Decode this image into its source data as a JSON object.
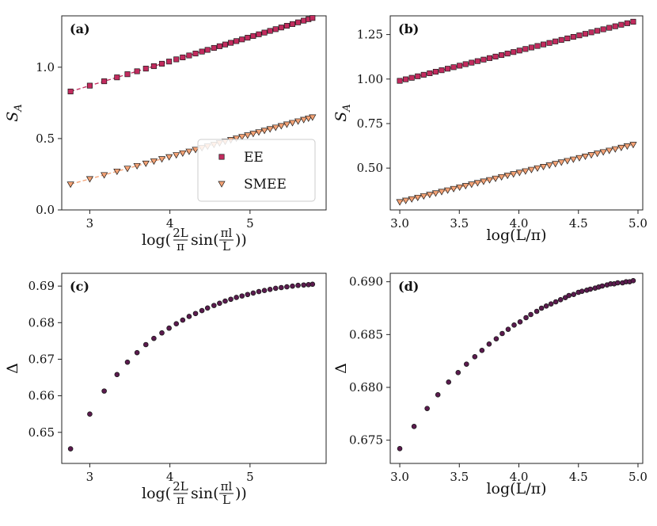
{
  "chart_data": [
    {
      "type": "scatter",
      "panel_label": "(a)",
      "xlabel": "log(2L/π sin(πl/L))",
      "ylabel": "S_A",
      "xlim": [
        2.65,
        5.95
      ],
      "ylim": [
        0.0,
        1.36
      ],
      "xticks": [
        3,
        4,
        5
      ],
      "yticks": [
        0.0,
        0.5,
        1.0
      ],
      "ytick_labels": [
        "0.0",
        "0.5",
        "1.0"
      ],
      "series": [
        {
          "name": "EE",
          "marker": "square",
          "color": "#c22b5e",
          "fit_color": "#c22b5e",
          "x": [
            2.76,
            3.0,
            3.18,
            3.34,
            3.47,
            3.59,
            3.7,
            3.8,
            3.9,
            3.99,
            4.08,
            4.16,
            4.24,
            4.32,
            4.4,
            4.47,
            4.55,
            4.62,
            4.69,
            4.76,
            4.83,
            4.9,
            4.97,
            5.04,
            5.11,
            5.18,
            5.25,
            5.32,
            5.39,
            5.46,
            5.53,
            5.6,
            5.67,
            5.73,
            5.78
          ],
          "fit": {
            "x": [
              2.76,
              5.78
            ],
            "y": [
              0.83,
              1.345
            ]
          }
        },
        {
          "name": "SMEE",
          "marker": "triangle-down",
          "color": "#f4a275",
          "fit_color": "#f4a275",
          "x": [
            2.76,
            3.0,
            3.18,
            3.34,
            3.47,
            3.59,
            3.7,
            3.8,
            3.9,
            3.99,
            4.08,
            4.16,
            4.24,
            4.32,
            4.4,
            4.47,
            4.55,
            4.62,
            4.69,
            4.76,
            4.83,
            4.9,
            4.97,
            5.04,
            5.11,
            5.18,
            5.25,
            5.32,
            5.39,
            5.46,
            5.53,
            5.6,
            5.67,
            5.73,
            5.78
          ],
          "fit": {
            "x": [
              2.76,
              5.78
            ],
            "y": [
              0.18,
              0.65
            ]
          }
        }
      ],
      "legend": {
        "placement": "lower-right",
        "entries": [
          "EE",
          "SMEE"
        ]
      }
    },
    {
      "type": "scatter",
      "panel_label": "(b)",
      "xlabel": "log(L/π)",
      "ylabel": "S_A",
      "xlim": [
        2.92,
        5.04
      ],
      "ylim": [
        0.265,
        1.355
      ],
      "xticks": [
        3.0,
        3.5,
        4.0,
        4.5,
        5.0
      ],
      "xtick_labels": [
        "3.0",
        "3.5",
        "4.0",
        "4.5",
        "5.0"
      ],
      "yticks": [
        0.5,
        0.75,
        1.0,
        1.25
      ],
      "ytick_labels": [
        "0.50",
        "0.75",
        "1.00",
        "1.25"
      ],
      "series": [
        {
          "name": "EE",
          "marker": "square",
          "color": "#c22b5e",
          "x_start": 3.0,
          "x_end": 4.96,
          "count": 40,
          "fit": {
            "x": [
              3.0,
              4.96
            ],
            "y": [
              0.99,
              1.322
            ]
          }
        },
        {
          "name": "SMEE",
          "marker": "triangle-down",
          "color": "#f4a275",
          "x_start": 3.0,
          "x_end": 4.96,
          "count": 40,
          "fit": {
            "x": [
              3.0,
              4.96
            ],
            "y": [
              0.31,
              0.632
            ]
          }
        }
      ]
    },
    {
      "type": "scatter",
      "panel_label": "(c)",
      "xlabel": "log(2L/π sin(πl/L))",
      "ylabel": "Δ",
      "xlim": [
        2.65,
        5.95
      ],
      "ylim": [
        0.6415,
        0.6935
      ],
      "xticks": [
        3,
        4,
        5
      ],
      "yticks": [
        0.65,
        0.66,
        0.67,
        0.68,
        0.69
      ],
      "ytick_labels": [
        "0.65",
        "0.66",
        "0.67",
        "0.68",
        "0.69"
      ],
      "series": [
        {
          "name": "Δ",
          "marker": "circle",
          "color": "#5b1a4e",
          "x": [
            2.76,
            3.0,
            3.18,
            3.34,
            3.47,
            3.59,
            3.7,
            3.8,
            3.9,
            3.99,
            4.08,
            4.16,
            4.24,
            4.32,
            4.4,
            4.47,
            4.55,
            4.62,
            4.69,
            4.76,
            4.83,
            4.9,
            4.97,
            5.04,
            5.11,
            5.18,
            5.25,
            5.32,
            5.39,
            5.46,
            5.53,
            5.6,
            5.67,
            5.73,
            5.78
          ],
          "y": [
            0.6455,
            0.655,
            0.6613,
            0.6658,
            0.6692,
            0.6718,
            0.674,
            0.6757,
            0.6772,
            0.6785,
            0.6797,
            0.6807,
            0.6817,
            0.6825,
            0.6833,
            0.684,
            0.6847,
            0.6853,
            0.6859,
            0.6864,
            0.6869,
            0.6873,
            0.6877,
            0.6881,
            0.6885,
            0.6888,
            0.6891,
            0.6894,
            0.6896,
            0.6898,
            0.69,
            0.6902,
            0.6903,
            0.6904,
            0.6905
          ]
        }
      ]
    },
    {
      "type": "scatter",
      "panel_label": "(d)",
      "xlabel": "log(L/π)",
      "ylabel": "Δ",
      "xlim": [
        2.92,
        5.04
      ],
      "ylim": [
        0.6728,
        0.6908
      ],
      "xticks": [
        3.0,
        3.5,
        4.0,
        4.5,
        5.0
      ],
      "xtick_labels": [
        "3.0",
        "3.5",
        "4.0",
        "4.5",
        "5.0"
      ],
      "yticks": [
        0.675,
        0.68,
        0.685,
        0.69
      ],
      "ytick_labels": [
        "0.675",
        "0.680",
        "0.685",
        "0.690"
      ],
      "series": [
        {
          "name": "Δ",
          "marker": "circle",
          "color": "#5b1a4e",
          "x": [
            3.0,
            3.12,
            3.23,
            3.32,
            3.41,
            3.49,
            3.56,
            3.63,
            3.69,
            3.75,
            3.81,
            3.86,
            3.91,
            3.96,
            4.01,
            4.06,
            4.1,
            4.15,
            4.19,
            4.23,
            4.27,
            4.31,
            4.35,
            4.39,
            4.42,
            4.46,
            4.5,
            4.53,
            4.57,
            4.6,
            4.64,
            4.67,
            4.7,
            4.74,
            4.77,
            4.8,
            4.83,
            4.87,
            4.9,
            4.93,
            4.96
          ],
          "y": [
            0.6742,
            0.6763,
            0.678,
            0.6793,
            0.6805,
            0.6814,
            0.6822,
            0.6829,
            0.6835,
            0.6841,
            0.6846,
            0.6851,
            0.6855,
            0.6859,
            0.6862,
            0.6866,
            0.6869,
            0.6872,
            0.6875,
            0.6877,
            0.6879,
            0.6881,
            0.6883,
            0.6885,
            0.6887,
            0.6888,
            0.689,
            0.6891,
            0.6892,
            0.6893,
            0.6894,
            0.6895,
            0.6896,
            0.6897,
            0.6898,
            0.6898,
            0.6899,
            0.6899,
            0.69,
            0.69,
            0.6901
          ]
        }
      ]
    }
  ]
}
